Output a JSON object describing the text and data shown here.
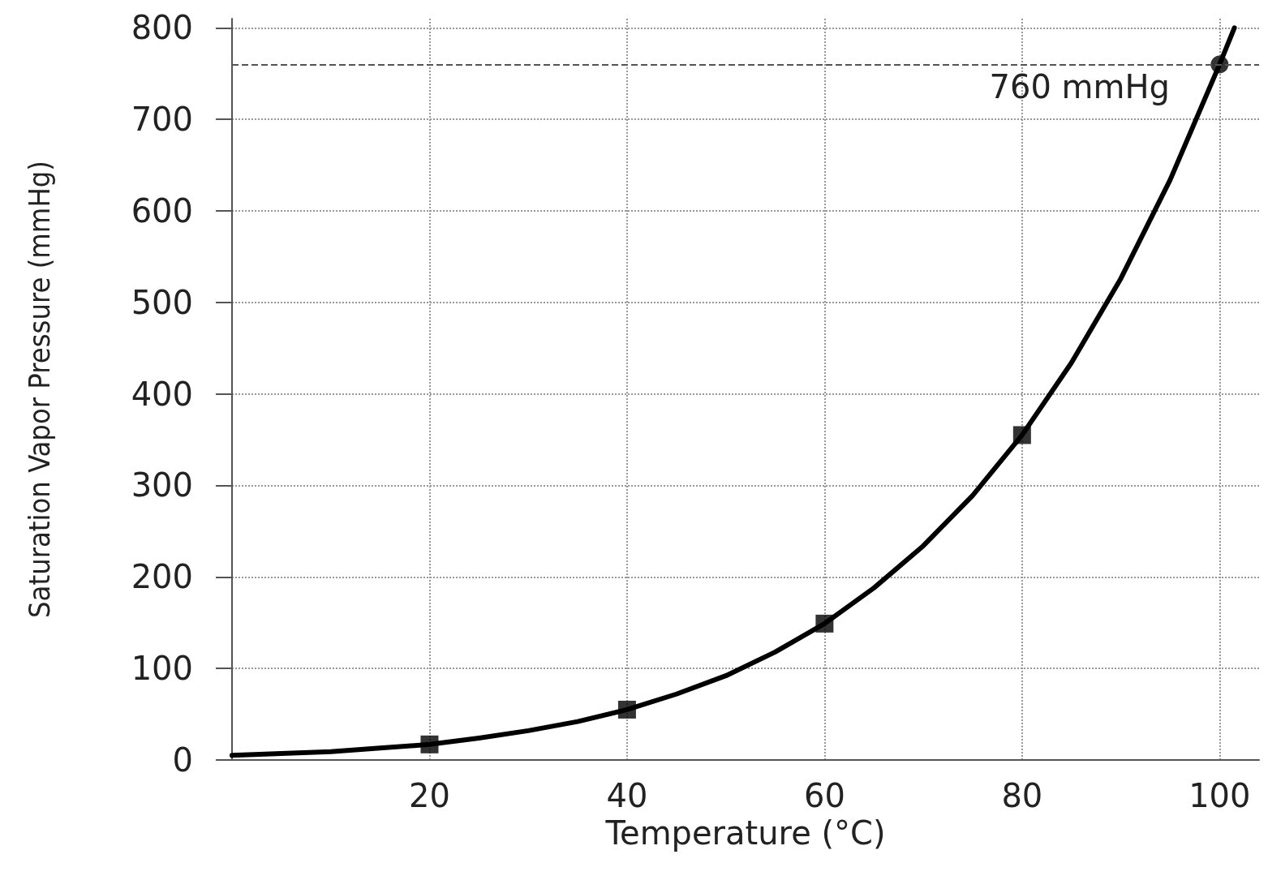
{
  "chart_data": {
    "type": "line",
    "xlabel": "Temperature (°C)",
    "ylabel": "Saturation Vapor Pressure (mmHg)",
    "xlim": [
      0,
      104
    ],
    "xticks": [
      20,
      40,
      60,
      80,
      100
    ],
    "ylim": [
      0,
      810
    ],
    "yticks": [
      0,
      100,
      200,
      300,
      400,
      500,
      600,
      700,
      800
    ],
    "grid": true,
    "series": [
      {
        "color": "#000000",
        "marker": "none",
        "x": [
          0,
          5,
          10,
          15,
          20,
          25,
          30,
          35,
          40,
          45,
          50,
          55,
          60,
          65,
          70,
          75,
          80,
          85,
          90,
          95,
          100,
          101.5
        ],
        "values": [
          5,
          7,
          9,
          13,
          17,
          24,
          32,
          42,
          55,
          72,
          92,
          118,
          149,
          188,
          234,
          289,
          355,
          434,
          526,
          634,
          760,
          800
        ]
      },
      {
        "type": "scatter",
        "color": "#000000",
        "marker": "square",
        "x": [
          20,
          40,
          60,
          80
        ],
        "values": [
          17,
          55,
          149,
          355
        ]
      },
      {
        "type": "scatter",
        "color": "#000000",
        "marker": "circle",
        "x": [
          100
        ],
        "values": [
          760
        ]
      }
    ],
    "ref_lines": [
      {
        "axis": "y",
        "value": 760,
        "label": "760 mmHg",
        "line_style": "dashed",
        "color": "#555555"
      }
    ]
  }
}
